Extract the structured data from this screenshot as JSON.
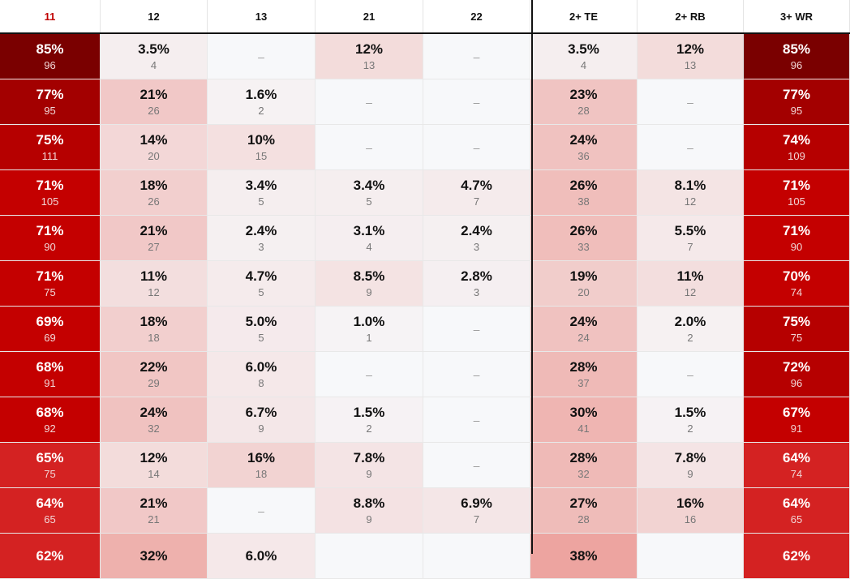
{
  "columns": [
    "11",
    "12",
    "13",
    "21",
    "22",
    "2+ TE",
    "2+ RB",
    "3+ WR"
  ],
  "sorted_column": "11",
  "rows": [
    [
      [
        "85%",
        "96"
      ],
      [
        "3.5%",
        "4"
      ],
      [
        "–",
        ""
      ],
      [
        "12%",
        "13"
      ],
      [
        "–",
        ""
      ],
      [
        "3.5%",
        "4"
      ],
      [
        "12%",
        "13"
      ],
      [
        "85%",
        "96"
      ]
    ],
    [
      [
        "77%",
        "95"
      ],
      [
        "21%",
        "26"
      ],
      [
        "1.6%",
        "2"
      ],
      [
        "–",
        ""
      ],
      [
        "–",
        ""
      ],
      [
        "23%",
        "28"
      ],
      [
        "–",
        ""
      ],
      [
        "77%",
        "95"
      ]
    ],
    [
      [
        "75%",
        "111"
      ],
      [
        "14%",
        "20"
      ],
      [
        "10%",
        "15"
      ],
      [
        "–",
        ""
      ],
      [
        "–",
        ""
      ],
      [
        "24%",
        "36"
      ],
      [
        "–",
        ""
      ],
      [
        "74%",
        "109"
      ]
    ],
    [
      [
        "71%",
        "105"
      ],
      [
        "18%",
        "26"
      ],
      [
        "3.4%",
        "5"
      ],
      [
        "3.4%",
        "5"
      ],
      [
        "4.7%",
        "7"
      ],
      [
        "26%",
        "38"
      ],
      [
        "8.1%",
        "12"
      ],
      [
        "71%",
        "105"
      ]
    ],
    [
      [
        "71%",
        "90"
      ],
      [
        "21%",
        "27"
      ],
      [
        "2.4%",
        "3"
      ],
      [
        "3.1%",
        "4"
      ],
      [
        "2.4%",
        "3"
      ],
      [
        "26%",
        "33"
      ],
      [
        "5.5%",
        "7"
      ],
      [
        "71%",
        "90"
      ]
    ],
    [
      [
        "71%",
        "75"
      ],
      [
        "11%",
        "12"
      ],
      [
        "4.7%",
        "5"
      ],
      [
        "8.5%",
        "9"
      ],
      [
        "2.8%",
        "3"
      ],
      [
        "19%",
        "20"
      ],
      [
        "11%",
        "12"
      ],
      [
        "70%",
        "74"
      ]
    ],
    [
      [
        "69%",
        "69"
      ],
      [
        "18%",
        "18"
      ],
      [
        "5.0%",
        "5"
      ],
      [
        "1.0%",
        "1"
      ],
      [
        "–",
        ""
      ],
      [
        "24%",
        "24"
      ],
      [
        "2.0%",
        "2"
      ],
      [
        "75%",
        "75"
      ]
    ],
    [
      [
        "68%",
        "91"
      ],
      [
        "22%",
        "29"
      ],
      [
        "6.0%",
        "8"
      ],
      [
        "–",
        ""
      ],
      [
        "–",
        ""
      ],
      [
        "28%",
        "37"
      ],
      [
        "–",
        ""
      ],
      [
        "72%",
        "96"
      ]
    ],
    [
      [
        "68%",
        "92"
      ],
      [
        "24%",
        "32"
      ],
      [
        "6.7%",
        "9"
      ],
      [
        "1.5%",
        "2"
      ],
      [
        "–",
        ""
      ],
      [
        "30%",
        "41"
      ],
      [
        "1.5%",
        "2"
      ],
      [
        "67%",
        "91"
      ]
    ],
    [
      [
        "65%",
        "75"
      ],
      [
        "12%",
        "14"
      ],
      [
        "16%",
        "18"
      ],
      [
        "7.8%",
        "9"
      ],
      [
        "–",
        ""
      ],
      [
        "28%",
        "32"
      ],
      [
        "7.8%",
        "9"
      ],
      [
        "64%",
        "74"
      ]
    ],
    [
      [
        "64%",
        "65"
      ],
      [
        "21%",
        "21"
      ],
      [
        "–",
        ""
      ],
      [
        "8.8%",
        "9"
      ],
      [
        "6.9%",
        "7"
      ],
      [
        "27%",
        "28"
      ],
      [
        "16%",
        "16"
      ],
      [
        "64%",
        "65"
      ]
    ],
    [
      [
        "62%",
        ""
      ],
      [
        "32%",
        ""
      ],
      [
        "6.0%",
        ""
      ],
      [
        "",
        ""
      ],
      [
        "",
        ""
      ],
      [
        "38%",
        ""
      ],
      [
        "",
        ""
      ],
      [
        "62%",
        ""
      ]
    ]
  ],
  "colors": {
    "heat_max": "#7a0000",
    "heat_high": "#c00000",
    "heat_mid": "#e02020",
    "heat_light": "#f6d0d0",
    "heat_none": "#f7f8fa",
    "header_sorted": "#c00000"
  }
}
